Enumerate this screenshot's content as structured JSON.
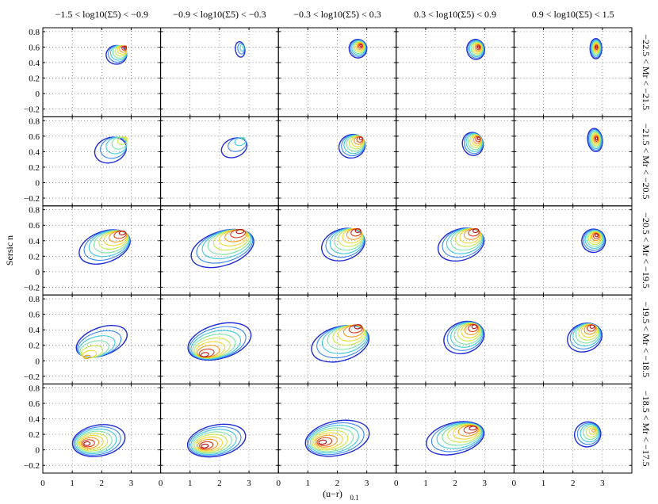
{
  "chart_data": {
    "type": "contour",
    "title": "",
    "xlabel": "(u−r)",
    "xlabel_sub": "0.1",
    "ylabel": "Sersic n",
    "xlim": [
      0,
      4
    ],
    "ylim": [
      -0.3,
      0.85
    ],
    "xticks": [
      "0",
      "1",
      "2",
      "3"
    ],
    "yticks": [
      "−0.2",
      "0",
      "0.2",
      "0.4",
      "0.6",
      "0.8"
    ],
    "grid": true,
    "column_titles": [
      "−1.5 < log10(Σ5) < −0.9",
      "−0.9 < log10(Σ5) < −0.3",
      "−0.3 < log10(Σ5) < 0.3",
      "0.3 < log10(Σ5) < 0.9",
      "0.9 < log10(Σ5) < 1.5"
    ],
    "row_titles": [
      "−22.5 < Mr < −21.5",
      "−21.5 < Mr < −20.5",
      "−20.5 < Mr < −19.5",
      "−19.5 < Mr < −18.5",
      "−18.5 < Mr < −17.5"
    ],
    "contour_colors": [
      "#1f2bd6",
      "#3a86f0",
      "#3ec9e0",
      "#7be2a8",
      "#c8e84a",
      "#f5d830",
      "#f59a1c",
      "#e03a14",
      "#b01010"
    ],
    "panels": [
      [
        {
          "red": {
            "x": 2.8,
            "y": 0.6
          },
          "blue": {
            "x": 2.5,
            "y": 0.5
          },
          "sx": 0.35,
          "sy": 0.12,
          "rot": 0.1,
          "levels": 9
        },
        {
          "red": {
            "x": 2.8,
            "y": 0.6
          },
          "blue": {
            "x": 2.7,
            "y": 0.57
          },
          "sx": 0.16,
          "sy": 0.1,
          "rot": 0.2,
          "levels": 4
        },
        {
          "red": {
            "x": 2.8,
            "y": 0.62
          },
          "blue": {
            "x": 2.7,
            "y": 0.58
          },
          "sx": 0.3,
          "sy": 0.12,
          "rot": 0.2,
          "levels": 9
        },
        {
          "red": {
            "x": 2.8,
            "y": 0.6
          },
          "blue": {
            "x": 2.7,
            "y": 0.57
          },
          "sx": 0.3,
          "sy": 0.13,
          "rot": 0.2,
          "levels": 9
        },
        {
          "red": {
            "x": 2.8,
            "y": 0.6
          },
          "blue": {
            "x": 2.78,
            "y": 0.58
          },
          "sx": 0.2,
          "sy": 0.13,
          "rot": 0.0,
          "levels": 9
        }
      ],
      [
        {
          "red": {
            "x": 2.8,
            "y": 0.57
          },
          "blue": {
            "x": 2.3,
            "y": 0.42
          },
          "sx": 0.55,
          "sy": 0.16,
          "rot": 0.5,
          "levels": 6
        },
        {
          "red": {
            "x": 2.8,
            "y": 0.57
          },
          "blue": {
            "x": 2.5,
            "y": 0.45
          },
          "sx": 0.45,
          "sy": 0.12,
          "rot": 0.55,
          "levels": 4
        },
        {
          "red": {
            "x": 2.8,
            "y": 0.57
          },
          "blue": {
            "x": 2.5,
            "y": 0.47
          },
          "sx": 0.45,
          "sy": 0.15,
          "rot": 0.45,
          "levels": 9
        },
        {
          "red": {
            "x": 2.8,
            "y": 0.57
          },
          "blue": {
            "x": 2.6,
            "y": 0.5
          },
          "sx": 0.35,
          "sy": 0.15,
          "rot": 0.4,
          "levels": 9
        },
        {
          "red": {
            "x": 2.8,
            "y": 0.57
          },
          "blue": {
            "x": 2.75,
            "y": 0.55
          },
          "sx": 0.25,
          "sy": 0.15,
          "rot": 0.2,
          "levels": 9
        }
      ],
      [
        {
          "red": {
            "x": 2.7,
            "y": 0.5
          },
          "blue": {
            "x": 2.1,
            "y": 0.32
          },
          "sx": 0.9,
          "sy": 0.2,
          "rot": 0.5,
          "levels": 9
        },
        {
          "red": {
            "x": 2.7,
            "y": 0.52
          },
          "blue": {
            "x": 2.1,
            "y": 0.3
          },
          "sx": 1.1,
          "sy": 0.22,
          "rot": 0.45,
          "levels": 9
        },
        {
          "red": {
            "x": 2.7,
            "y": 0.53
          },
          "blue": {
            "x": 2.2,
            "y": 0.35
          },
          "sx": 0.75,
          "sy": 0.2,
          "rot": 0.45,
          "levels": 9
        },
        {
          "red": {
            "x": 2.7,
            "y": 0.53
          },
          "blue": {
            "x": 2.2,
            "y": 0.35
          },
          "sx": 0.8,
          "sy": 0.2,
          "rot": 0.45,
          "levels": 9
        },
        {
          "red": {
            "x": 2.8,
            "y": 0.47
          },
          "blue": {
            "x": 2.7,
            "y": 0.4
          },
          "sx": 0.4,
          "sy": 0.15,
          "rot": 0.4,
          "levels": 9
        }
      ],
      [
        {
          "red": {
            "x": 1.5,
            "y": 0.05
          },
          "blue": {
            "x": 2.0,
            "y": 0.25
          },
          "sx": 0.9,
          "sy": 0.18,
          "rot": 0.5,
          "levels": 7
        },
        {
          "red": {
            "x": 1.5,
            "y": 0.08
          },
          "blue": {
            "x": 2.0,
            "y": 0.25
          },
          "sx": 1.1,
          "sy": 0.22,
          "rot": 0.4,
          "levels": 9
        },
        {
          "red": {
            "x": 2.7,
            "y": 0.44
          },
          "blue": {
            "x": 2.1,
            "y": 0.22
          },
          "sx": 1.0,
          "sy": 0.22,
          "rot": 0.4,
          "levels": 9
        },
        {
          "red": {
            "x": 2.65,
            "y": 0.44
          },
          "blue": {
            "x": 2.3,
            "y": 0.3
          },
          "sx": 0.7,
          "sy": 0.2,
          "rot": 0.5,
          "levels": 9
        },
        {
          "red": {
            "x": 2.65,
            "y": 0.44
          },
          "blue": {
            "x": 2.4,
            "y": 0.3
          },
          "sx": 0.6,
          "sy": 0.18,
          "rot": 0.5,
          "levels": 9
        }
      ],
      [
        {
          "red": {
            "x": 1.5,
            "y": 0.08
          },
          "blue": {
            "x": 1.9,
            "y": 0.12
          },
          "sx": 0.9,
          "sy": 0.2,
          "rot": 0.25,
          "levels": 9
        },
        {
          "red": {
            "x": 1.5,
            "y": 0.05
          },
          "blue": {
            "x": 1.9,
            "y": 0.12
          },
          "sx": 1.0,
          "sy": 0.2,
          "rot": 0.3,
          "levels": 9
        },
        {
          "red": {
            "x": 1.5,
            "y": 0.1
          },
          "blue": {
            "x": 2.0,
            "y": 0.15
          },
          "sx": 1.1,
          "sy": 0.22,
          "rot": 0.3,
          "levels": 9
        },
        {
          "red": {
            "x": 2.6,
            "y": 0.28
          },
          "blue": {
            "x": 2.0,
            "y": 0.15
          },
          "sx": 1.0,
          "sy": 0.2,
          "rot": 0.35,
          "levels": 9
        },
        {
          "red": {
            "x": 2.7,
            "y": 0.25
          },
          "blue": {
            "x": 2.5,
            "y": 0.2
          },
          "sx": 0.45,
          "sy": 0.16,
          "rot": 0.5,
          "levels": 7
        }
      ]
    ]
  }
}
